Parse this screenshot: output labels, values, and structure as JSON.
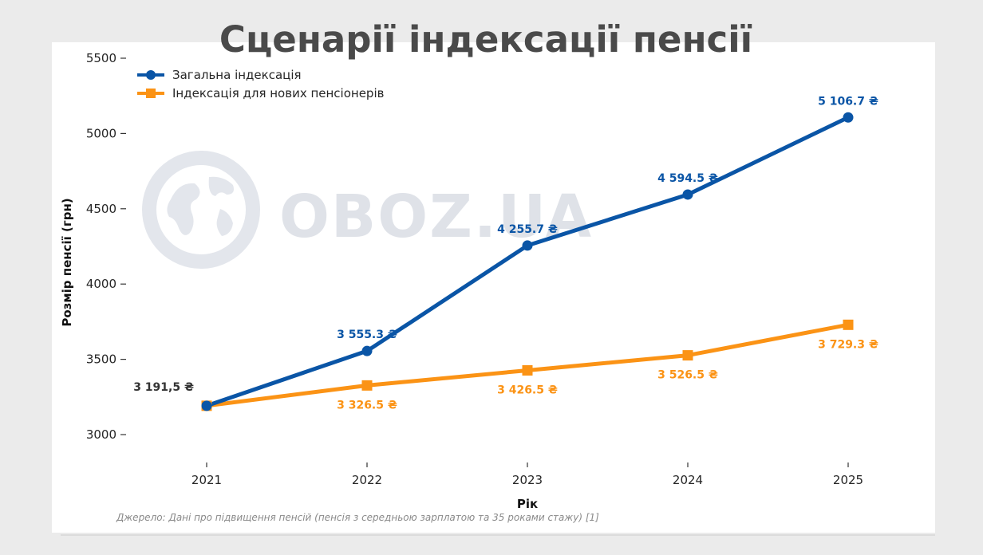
{
  "header": {
    "title": "Сценарії індексації пенсії"
  },
  "watermark": {
    "text": "OBOZ.UA"
  },
  "source_note": "Джерело: Дані про підвищення пенсій (пенсія з середньою зарплатою та 35 роками стажу) [1]",
  "chart_data": {
    "type": "line",
    "x": [
      2021,
      2022,
      2023,
      2024,
      2025
    ],
    "xlabel": "Рік",
    "ylabel": "Розмір пенсії (грн)",
    "ylim": [
      2870,
      5550
    ],
    "yticks": [
      3000,
      3500,
      4000,
      4500,
      5000,
      5500
    ],
    "grid": false,
    "legend_position": "top-left",
    "start_label": "3 191,5 ₴",
    "series": [
      {
        "name": "Загальна індексація",
        "color": "#0a55a6",
        "marker": "circle",
        "values": [
          3191.5,
          3555.3,
          4255.7,
          4594.5,
          5106.7
        ],
        "labels": [
          "",
          "3 555.3 ₴",
          "4 255.7 ₴",
          "4 594.5 ₴",
          "5 106.7 ₴"
        ]
      },
      {
        "name": "Індексація для нових пенсіонерів",
        "color": "#fb9315",
        "marker": "square",
        "values": [
          3191.5,
          3326.5,
          3426.5,
          3526.5,
          3729.3
        ],
        "labels": [
          "",
          "3 326.5 ₴",
          "3 426.5 ₴",
          "3 526.5 ₴",
          "3 729.3 ₴"
        ]
      }
    ]
  }
}
